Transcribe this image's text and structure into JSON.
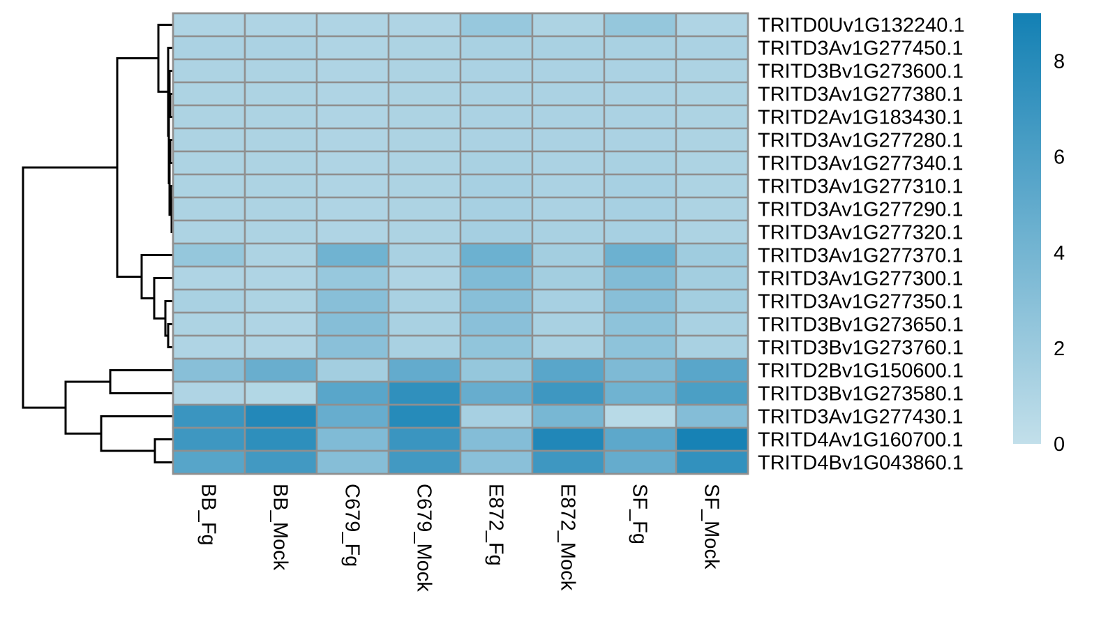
{
  "chart_data": {
    "type": "heatmap",
    "title": "",
    "xlabel": "",
    "ylabel": "",
    "columns": [
      "BB_Fg",
      "BB_Mock",
      "C679_Fg",
      "C679_Mock",
      "E872_Fg",
      "E872_Mock",
      "SF_Fg",
      "SF_Mock"
    ],
    "rows": [
      "TRITD0Uv1G132240.1",
      "TRITD3Av1G277450.1",
      "TRITD3Bv1G273600.1",
      "TRITD3Av1G277380.1",
      "TRITD2Av1G183430.1",
      "TRITD3Av1G277280.1",
      "TRITD3Av1G277340.1",
      "TRITD3Av1G277310.1",
      "TRITD3Av1G277290.1",
      "TRITD3Av1G277320.1",
      "TRITD3Av1G277370.1",
      "TRITD3Av1G277300.1",
      "TRITD3Av1G277350.1",
      "TRITD3Bv1G273650.1",
      "TRITD3Bv1G273760.1",
      "TRITD2Bv1G150600.1",
      "TRITD3Bv1G273580.1",
      "TRITD3Av1G277430.1",
      "TRITD4Av1G160700.1",
      "TRITD4Bv1G043860.1"
    ],
    "values": [
      [
        1.0,
        1.0,
        1.0,
        1.0,
        2.2,
        1.1,
        2.3,
        1.0
      ],
      [
        1.2,
        1.2,
        1.0,
        1.1,
        1.3,
        1.3,
        1.3,
        1.2
      ],
      [
        1.1,
        1.1,
        1.0,
        1.1,
        1.2,
        1.2,
        1.2,
        1.1
      ],
      [
        1.1,
        1.1,
        1.0,
        1.1,
        1.2,
        1.2,
        1.2,
        1.1
      ],
      [
        1.1,
        1.1,
        1.0,
        1.1,
        1.2,
        1.2,
        1.2,
        1.1
      ],
      [
        1.1,
        1.1,
        1.0,
        1.1,
        1.2,
        1.2,
        1.2,
        1.1
      ],
      [
        1.1,
        1.1,
        1.0,
        1.1,
        1.3,
        1.2,
        1.3,
        1.1
      ],
      [
        1.1,
        1.1,
        1.0,
        1.1,
        1.4,
        1.2,
        1.4,
        1.1
      ],
      [
        1.1,
        1.1,
        1.0,
        1.1,
        1.4,
        1.2,
        1.4,
        1.1
      ],
      [
        1.1,
        1.1,
        1.0,
        1.1,
        1.5,
        1.3,
        1.4,
        1.1
      ],
      [
        2.3,
        1.1,
        4.2,
        1.3,
        4.4,
        1.6,
        4.4,
        1.8
      ],
      [
        1.0,
        1.0,
        2.2,
        1.0,
        3.4,
        1.6,
        3.3,
        1.6
      ],
      [
        1.3,
        1.1,
        3.0,
        1.3,
        3.0,
        1.4,
        3.0,
        1.6
      ],
      [
        1.1,
        1.0,
        3.1,
        1.3,
        2.9,
        1.3,
        2.7,
        1.3
      ],
      [
        1.0,
        1.0,
        2.9,
        1.3,
        2.5,
        1.3,
        2.7,
        1.3
      ],
      [
        3.0,
        4.6,
        1.6,
        4.9,
        2.3,
        5.4,
        3.5,
        5.4
      ],
      [
        1.0,
        0.8,
        5.4,
        7.5,
        4.7,
        6.8,
        4.2,
        6.1
      ],
      [
        7.0,
        8.2,
        4.7,
        8.0,
        1.4,
        3.8,
        0.5,
        3.2
      ],
      [
        6.8,
        7.6,
        3.4,
        7.0,
        3.2,
        8.3,
        5.2,
        8.8
      ],
      [
        5.5,
        6.6,
        3.1,
        6.6,
        2.9,
        6.8,
        4.8,
        7.4
      ]
    ],
    "vmin": 0,
    "vmax": 9,
    "color_low": "#c2dfea",
    "color_high": "#1380b4",
    "cell_border_color": "#8f8f8f",
    "colorbar_ticks": [
      0,
      2,
      4,
      6,
      8
    ],
    "colorbar_tick_labels": [
      "0",
      "2",
      "4",
      "6",
      "8"
    ],
    "row_dendrogram": true,
    "column_dendrogram": false,
    "legend_position": "right"
  }
}
